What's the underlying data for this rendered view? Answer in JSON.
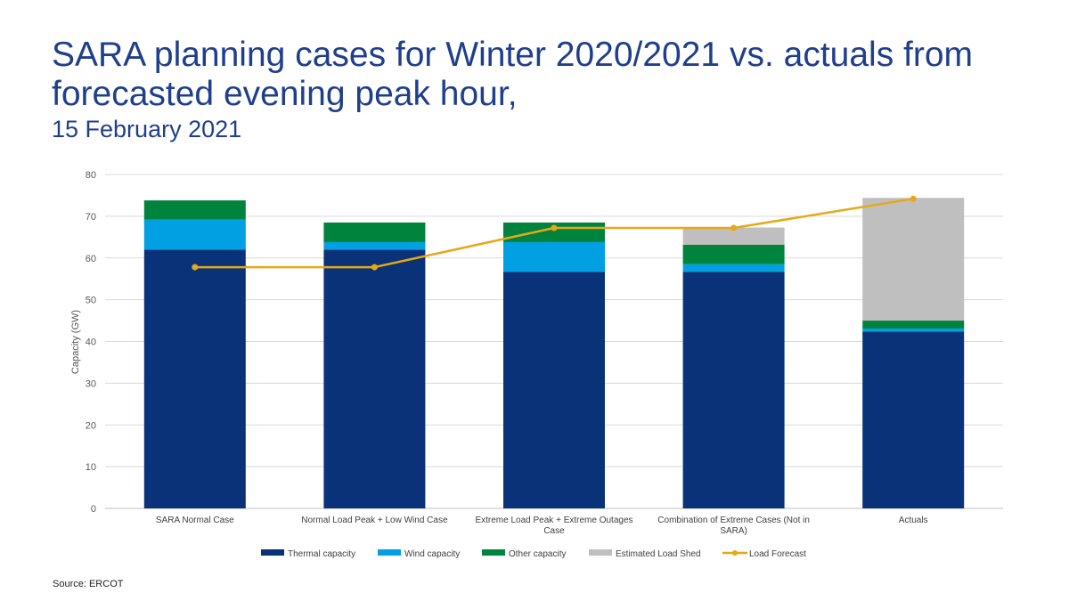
{
  "title": "SARA planning cases for Winter 2020/2021 vs. actuals from forecasted evening peak hour,",
  "subtitle": "15 February 2021",
  "source": "Source:  ERCOT",
  "chart_data": {
    "type": "bar",
    "stacked": true,
    "categories": [
      "SARA Normal Case",
      "Normal Load Peak + Low Wind Case",
      "Extreme Load Peak + Extreme Outages Case",
      "Combination of Extreme Cases (Not in SARA)",
      "Actuals"
    ],
    "category_label_lines": [
      [
        "SARA Normal Case"
      ],
      [
        "Normal Load Peak + Low Wind Case"
      ],
      [
        "Extreme Load Peak + Extreme Outages",
        "Case"
      ],
      [
        "Combination of Extreme Cases (Not in",
        "SARA)"
      ],
      [
        "Actuals"
      ]
    ],
    "series": [
      {
        "name": "Thermal capacity",
        "kind": "bar",
        "color": "#0a3278",
        "values": [
          62,
          62,
          56.7,
          56.7,
          42.4
        ]
      },
      {
        "name": "Wind capacity",
        "kind": "bar",
        "color": "#00a0e3",
        "values": [
          7.2,
          1.8,
          7.1,
          1.8,
          0.7
        ]
      },
      {
        "name": "Other capacity",
        "kind": "bar",
        "color": "#00843d",
        "values": [
          4.6,
          4.7,
          4.7,
          4.7,
          1.9
        ]
      },
      {
        "name": "Estimated Load Shed",
        "kind": "bar",
        "color": "#bfbfbf",
        "values": [
          0,
          0,
          0,
          4.1,
          29.4
        ]
      },
      {
        "name": "Load Forecast",
        "kind": "line",
        "color": "#e6a817",
        "values": [
          57.8,
          57.8,
          67.2,
          67.2,
          74.2
        ]
      }
    ],
    "ylabel": "Capacity (GW)",
    "ylim": [
      0,
      80
    ],
    "yticks": [
      0,
      10,
      20,
      30,
      40,
      50,
      60,
      70,
      80
    ],
    "grid": true,
    "legend_position": "bottom"
  }
}
